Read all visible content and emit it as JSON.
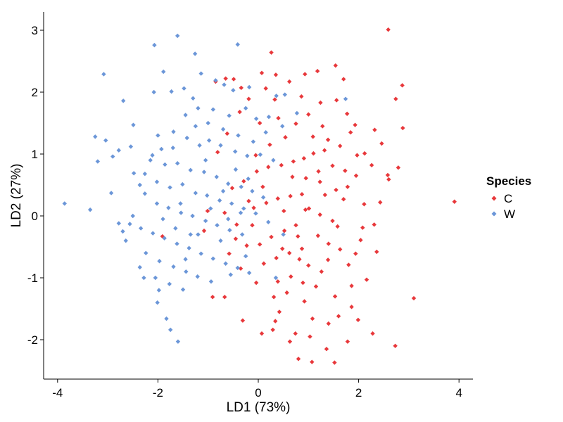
{
  "chart_data": {
    "type": "scatter",
    "xlabel": "LD1 (73%)",
    "ylabel": "LD2 (27%)",
    "xlim": [
      -4.2,
      4.3
    ],
    "ylim": [
      -2.6,
      3.15
    ],
    "xticks": [
      -4,
      -2,
      0,
      2,
      4
    ],
    "yticks": [
      -2,
      -1,
      0,
      1,
      2,
      3
    ],
    "xtick_labels": [
      "-4",
      "-2",
      "0",
      "2",
      "4"
    ],
    "ytick_labels": [
      "-2",
      "-1",
      "0",
      "1",
      "2",
      "3"
    ],
    "grid": false,
    "legend_position": "right",
    "legend_title": "Species",
    "series": [
      {
        "name": "C",
        "color": "#e8383b",
        "points": [
          [
            2.59,
            3.01
          ],
          [
            2.87,
            2.11
          ],
          [
            2.74,
            1.89
          ],
          [
            2.88,
            1.42
          ],
          [
            2.32,
            1.39
          ],
          [
            2.46,
            1.17
          ],
          [
            2.26,
            0.82
          ],
          [
            2.79,
            0.78
          ],
          [
            2.58,
            0.66
          ],
          [
            2.6,
            0.59
          ],
          [
            3.91,
            0.23
          ],
          [
            3.1,
            -1.33
          ],
          [
            2.73,
            -2.1
          ],
          [
            1.52,
            -2.37
          ],
          [
            0.8,
            -2.31
          ],
          [
            1.36,
            -2.15
          ],
          [
            1.78,
            -2.03
          ],
          [
            2.28,
            -1.9
          ],
          [
            0.42,
            -1.55
          ],
          [
            1.08,
            -1.66
          ],
          [
            0.74,
            -1.9
          ],
          [
            1.03,
            -1.95
          ],
          [
            0.34,
            -1.7
          ],
          [
            -0.67,
            -1.31
          ],
          [
            -0.31,
            -1.69
          ],
          [
            0.07,
            -1.9
          ],
          [
            -0.91,
            -1.31
          ],
          [
            1.07,
            -2.36
          ],
          [
            0.82,
            -0.7
          ],
          [
            1.53,
            -1.3
          ],
          [
            1.86,
            -1.47
          ],
          [
            1.99,
            -1.68
          ],
          [
            2.08,
            -0.19
          ],
          [
            1.94,
            -0.61
          ],
          [
            2.11,
            0.19
          ],
          [
            2.43,
            0.22
          ],
          [
            1.78,
            0.47
          ],
          [
            1.48,
            0.81
          ],
          [
            1.97,
            0.98
          ],
          [
            1.93,
            1.47
          ],
          [
            1.7,
            2.21
          ],
          [
            1.54,
            2.43
          ],
          [
            1.18,
            2.34
          ],
          [
            0.93,
            2.29
          ],
          [
            0.62,
            2.17
          ],
          [
            0.35,
            2.28
          ],
          [
            0.07,
            2.31
          ],
          [
            0.15,
            2.06
          ],
          [
            -0.34,
            2.07
          ],
          [
            -0.49,
            2.21
          ],
          [
            -0.65,
            2.22
          ],
          [
            -0.85,
            2.17
          ],
          [
            0.26,
            2.64
          ],
          [
            0.86,
            1.93
          ],
          [
            1.24,
            1.83
          ],
          [
            1.56,
            1.87
          ],
          [
            1.77,
            1.65
          ],
          [
            1.84,
            1.35
          ],
          [
            1.63,
            1.13
          ],
          [
            1.32,
            1.06
          ],
          [
            1.1,
            1.01
          ],
          [
            0.91,
            0.93
          ],
          [
            0.7,
            0.88
          ],
          [
            0.46,
            0.82
          ],
          [
            0.2,
            0.79
          ],
          [
            -0.03,
            0.72
          ],
          [
            0.95,
            0.61
          ],
          [
            1.23,
            0.55
          ],
          [
            1.55,
            0.42
          ],
          [
            1.7,
            0.27
          ],
          [
            0.87,
            0.35
          ],
          [
            0.64,
            0.32
          ],
          [
            0.39,
            0.28
          ],
          [
            0.16,
            0.21
          ],
          [
            -0.09,
            0.13
          ],
          [
            1.01,
            0.12
          ],
          [
            1.23,
            0.02
          ],
          [
            1.48,
            -0.08
          ],
          [
            0.75,
            -0.15
          ],
          [
            0.52,
            -0.24
          ],
          [
            0.26,
            -0.34
          ],
          [
            0.03,
            -0.46
          ],
          [
            1.19,
            -0.32
          ],
          [
            1.4,
            -0.45
          ],
          [
            1.63,
            -0.54
          ],
          [
            0.87,
            -0.53
          ],
          [
            0.62,
            -0.6
          ],
          [
            0.36,
            -0.68
          ],
          [
            0.11,
            -0.77
          ],
          [
            1.0,
            -0.8
          ],
          [
            1.26,
            -0.9
          ],
          [
            0.65,
            -0.98
          ],
          [
            0.39,
            -1.06
          ],
          [
            0.89,
            -1.08
          ],
          [
            1.15,
            -1.14
          ],
          [
            0.57,
            -1.24
          ],
          [
            0.31,
            -1.31
          ],
          [
            0.92,
            -1.38
          ],
          [
            1.39,
            -0.71
          ],
          [
            1.8,
            -0.79
          ],
          [
            2.04,
            -0.39
          ],
          [
            1.58,
            -0.17
          ],
          [
            1.73,
            0.73
          ],
          [
            1.33,
            0.34
          ],
          [
            -0.29,
            0.56
          ],
          [
            -0.52,
            0.45
          ],
          [
            -0.19,
            0.24
          ],
          [
            -0.43,
            -0.14
          ],
          [
            -0.67,
            0.05
          ],
          [
            -0.23,
            -0.48
          ],
          [
            -0.35,
            -0.85
          ],
          [
            -0.04,
            -1.08
          ],
          [
            -1.01,
            0.08
          ],
          [
            -1.08,
            -0.24
          ],
          [
            -0.58,
            -0.61
          ],
          [
            -0.81,
            1.03
          ],
          [
            -0.62,
            1.33
          ],
          [
            -0.37,
            1.68
          ],
          [
            0.4,
            1.58
          ],
          [
            0.75,
            1.49
          ],
          [
            1.09,
            1.28
          ],
          [
            1.39,
            1.23
          ],
          [
            0.23,
            1.15
          ],
          [
            0.54,
            1.27
          ],
          [
            1.0,
            1.64
          ],
          [
            1.28,
            1.45
          ],
          [
            0.03,
            1.5
          ],
          [
            0.33,
            1.88
          ],
          [
            2.12,
            1.01
          ],
          [
            1.95,
            0.65
          ],
          [
            2.31,
            -0.14
          ],
          [
            2.36,
            -0.58
          ],
          [
            -0.45,
            -0.37
          ],
          [
            -0.19,
            1.89
          ],
          [
            1.86,
            -1.13
          ],
          [
            1.6,
            -1.62
          ],
          [
            2.16,
            -1.03
          ],
          [
            1.4,
            -1.74
          ],
          [
            0.63,
            -2.03
          ],
          [
            0.68,
            0.63
          ],
          [
            0.51,
            0.08
          ],
          [
            0.79,
            -0.33
          ],
          [
            -0.12,
            -0.15
          ],
          [
            0.09,
            0.47
          ],
          [
            0.29,
            -1.84
          ],
          [
            -1.91,
            -0.33
          ],
          [
            0.48,
            -0.53
          ],
          [
            0.94,
            0.1
          ],
          [
            1.2,
            0.72
          ],
          [
            -0.05,
            0.98
          ]
        ]
      },
      {
        "name": "W",
        "color": "#6b96d8",
        "points": [
          [
            -1.61,
            2.91
          ],
          [
            -2.07,
            2.76
          ],
          [
            -1.26,
            2.62
          ],
          [
            -0.41,
            2.77
          ],
          [
            -1.89,
            2.33
          ],
          [
            -1.14,
            2.3
          ],
          [
            -0.85,
            2.19
          ],
          [
            -3.08,
            2.29
          ],
          [
            -2.69,
            1.86
          ],
          [
            -2.08,
            2.0
          ],
          [
            -1.73,
            2.01
          ],
          [
            -1.48,
            2.06
          ],
          [
            -0.68,
            2.12
          ],
          [
            -0.5,
            2.03
          ],
          [
            -0.18,
            2.08
          ],
          [
            0.53,
            1.96
          ],
          [
            1.74,
            1.89
          ],
          [
            0.36,
            1.94
          ],
          [
            -1.45,
            1.63
          ],
          [
            -1.2,
            1.74
          ],
          [
            -0.9,
            1.72
          ],
          [
            -0.58,
            1.62
          ],
          [
            -0.25,
            1.74
          ],
          [
            -0.04,
            1.57
          ],
          [
            0.21,
            1.6
          ],
          [
            0.48,
            1.45
          ],
          [
            0.77,
            1.66
          ],
          [
            -2.49,
            1.47
          ],
          [
            -3.25,
            1.28
          ],
          [
            -3.04,
            1.22
          ],
          [
            -2.78,
            1.06
          ],
          [
            -2.54,
            1.12
          ],
          [
            -2.0,
            1.3
          ],
          [
            -1.69,
            1.36
          ],
          [
            -1.42,
            1.26
          ],
          [
            -1.17,
            1.14
          ],
          [
            -0.98,
            1.22
          ],
          [
            -0.75,
            1.14
          ],
          [
            -0.46,
            1.04
          ],
          [
            -0.22,
            0.97
          ],
          [
            0.04,
            0.99
          ],
          [
            -3.2,
            0.88
          ],
          [
            -2.9,
            0.96
          ],
          [
            -2.11,
            0.98
          ],
          [
            -1.86,
            0.83
          ],
          [
            -1.61,
            0.85
          ],
          [
            -1.35,
            0.74
          ],
          [
            -1.08,
            0.71
          ],
          [
            -0.83,
            0.63
          ],
          [
            -0.6,
            0.52
          ],
          [
            -0.34,
            0.47
          ],
          [
            -0.12,
            0.4
          ],
          [
            -2.48,
            0.69
          ],
          [
            -2.26,
            0.68
          ],
          [
            -2.02,
            0.55
          ],
          [
            -1.76,
            0.46
          ],
          [
            -1.51,
            0.51
          ],
          [
            -1.25,
            0.37
          ],
          [
            -1.02,
            0.33
          ],
          [
            -0.77,
            0.25
          ],
          [
            -0.53,
            0.2
          ],
          [
            -0.29,
            0.12
          ],
          [
            -0.05,
            0.04
          ],
          [
            -2.93,
            0.37
          ],
          [
            -2.26,
            0.36
          ],
          [
            -2.02,
            0.2
          ],
          [
            -1.79,
            0.13
          ],
          [
            -1.54,
            0.05
          ],
          [
            -1.31,
            0.0
          ],
          [
            -1.05,
            -0.08
          ],
          [
            -0.82,
            -0.15
          ],
          [
            -0.57,
            -0.23
          ],
          [
            -0.32,
            -0.3
          ],
          [
            -3.86,
            0.2
          ],
          [
            -3.35,
            0.1
          ],
          [
            -2.78,
            -0.12
          ],
          [
            -2.56,
            -0.13
          ],
          [
            -2.34,
            -0.2
          ],
          [
            -2.1,
            -0.28
          ],
          [
            -1.87,
            -0.36
          ],
          [
            -1.62,
            -0.45
          ],
          [
            -1.38,
            -0.52
          ],
          [
            -1.14,
            -0.61
          ],
          [
            -0.9,
            -0.69
          ],
          [
            -0.65,
            -0.77
          ],
          [
            -0.41,
            -0.84
          ],
          [
            -0.18,
            -0.92
          ],
          [
            -2.64,
            -0.4
          ],
          [
            -2.24,
            -0.6
          ],
          [
            -1.97,
            -0.73
          ],
          [
            -1.69,
            -0.82
          ],
          [
            -1.44,
            -0.9
          ],
          [
            -1.21,
            -0.98
          ],
          [
            -0.94,
            -1.06
          ],
          [
            -2.36,
            -0.83
          ],
          [
            -2.05,
            -1.0
          ],
          [
            -1.77,
            -1.1
          ],
          [
            -1.5,
            -1.19
          ],
          [
            -2.28,
            -1.0
          ],
          [
            -1.98,
            -1.2
          ],
          [
            -2.01,
            -1.4
          ],
          [
            -1.83,
            -1.66
          ],
          [
            -1.75,
            -1.84
          ],
          [
            -1.6,
            -2.03
          ],
          [
            -2.5,
            0.0
          ],
          [
            -2.7,
            -0.25
          ],
          [
            -1.3,
            1.9
          ],
          [
            -1.0,
            1.5
          ],
          [
            -0.7,
            1.4
          ],
          [
            -0.4,
            1.3
          ],
          [
            -0.1,
            1.2
          ],
          [
            0.15,
            1.35
          ],
          [
            0.3,
            0.9
          ],
          [
            -1.93,
            1.08
          ],
          [
            -2.36,
            0.5
          ],
          [
            -1.55,
            0.2
          ],
          [
            -1.2,
            -0.3
          ],
          [
            -0.95,
            0.12
          ],
          [
            -0.7,
            0.4
          ],
          [
            -0.45,
            0.75
          ],
          [
            -0.2,
            0.6
          ],
          [
            0.1,
            0.3
          ],
          [
            -1.35,
            -0.3
          ],
          [
            -1.65,
            -0.2
          ],
          [
            -0.25,
            -0.65
          ],
          [
            -0.75,
            -0.4
          ],
          [
            -1.05,
            0.9
          ],
          [
            -1.25,
            1.45
          ],
          [
            -1.7,
            1.1
          ],
          [
            -1.45,
            -0.7
          ],
          [
            -0.55,
            -0.95
          ],
          [
            0.35,
            -1.0
          ],
          [
            0.5,
            -0.3
          ],
          [
            0.2,
            -0.1
          ],
          [
            -1.9,
            -0.05
          ],
          [
            -2.15,
            0.9
          ],
          [
            -0.35,
            0.05
          ],
          [
            -0.6,
            -0.05
          ]
        ]
      }
    ]
  }
}
